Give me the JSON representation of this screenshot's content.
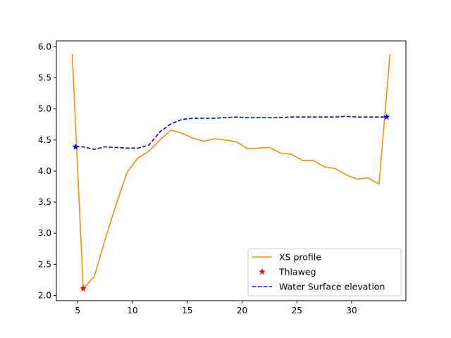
{
  "chart_data": {
    "type": "line",
    "title": "",
    "xlabel": "",
    "ylabel": "",
    "xlim": [
      3.05,
      34.95
    ],
    "ylim": [
      1.915,
      6.095
    ],
    "xticks": [
      5,
      10,
      15,
      20,
      25,
      30
    ],
    "yticks": [
      2.0,
      2.5,
      3.0,
      3.5,
      4.0,
      4.5,
      5.0,
      5.5,
      6.0
    ],
    "grid": false,
    "legend_position": "lower-right",
    "series": [
      {
        "name": "XS profile",
        "kind": "line",
        "color": "#ff8c00",
        "x": [
          4.5,
          5.5,
          6.5,
          7.5,
          8.5,
          9.5,
          10.5,
          11.5,
          12.5,
          13.5,
          14.5,
          15.5,
          16.5,
          17.5,
          18.5,
          19.5,
          20.5,
          21.5,
          22.5,
          23.5,
          24.5,
          25.5,
          26.5,
          27.5,
          28.5,
          29.5,
          30.5,
          31.5,
          32.5,
          33.5
        ],
        "y": [
          5.88,
          2.11,
          2.3,
          2.9,
          3.46,
          3.98,
          4.21,
          4.32,
          4.5,
          4.66,
          4.61,
          4.53,
          4.48,
          4.52,
          4.5,
          4.47,
          4.36,
          4.37,
          4.38,
          4.29,
          4.27,
          4.17,
          4.17,
          4.07,
          4.04,
          3.94,
          3.87,
          3.89,
          3.79,
          5.88
        ]
      },
      {
        "name": "Thlaweg",
        "kind": "markers",
        "color": "#ff0000",
        "x": [
          5.5
        ],
        "y": [
          2.11
        ]
      },
      {
        "name": "Water Surface elevation",
        "kind": "dashed-line",
        "color": "#0000ff",
        "x": [
          4.8,
          5.5,
          6.5,
          7.5,
          8.5,
          9.5,
          10.5,
          11.5,
          12.5,
          13.5,
          14.5,
          15.5,
          16.5,
          17.5,
          18.5,
          19.5,
          20.5,
          21.5,
          22.5,
          23.5,
          24.5,
          25.5,
          26.5,
          27.5,
          28.5,
          29.5,
          30.5,
          31.5,
          32.5,
          33.2
        ],
        "y": [
          4.39,
          4.39,
          4.35,
          4.39,
          4.38,
          4.37,
          4.37,
          4.42,
          4.63,
          4.76,
          4.83,
          4.85,
          4.85,
          4.85,
          4.86,
          4.87,
          4.86,
          4.86,
          4.86,
          4.86,
          4.87,
          4.87,
          4.87,
          4.87,
          4.87,
          4.88,
          4.87,
          4.87,
          4.87,
          4.87
        ],
        "endpoint_markers": true
      }
    ]
  }
}
